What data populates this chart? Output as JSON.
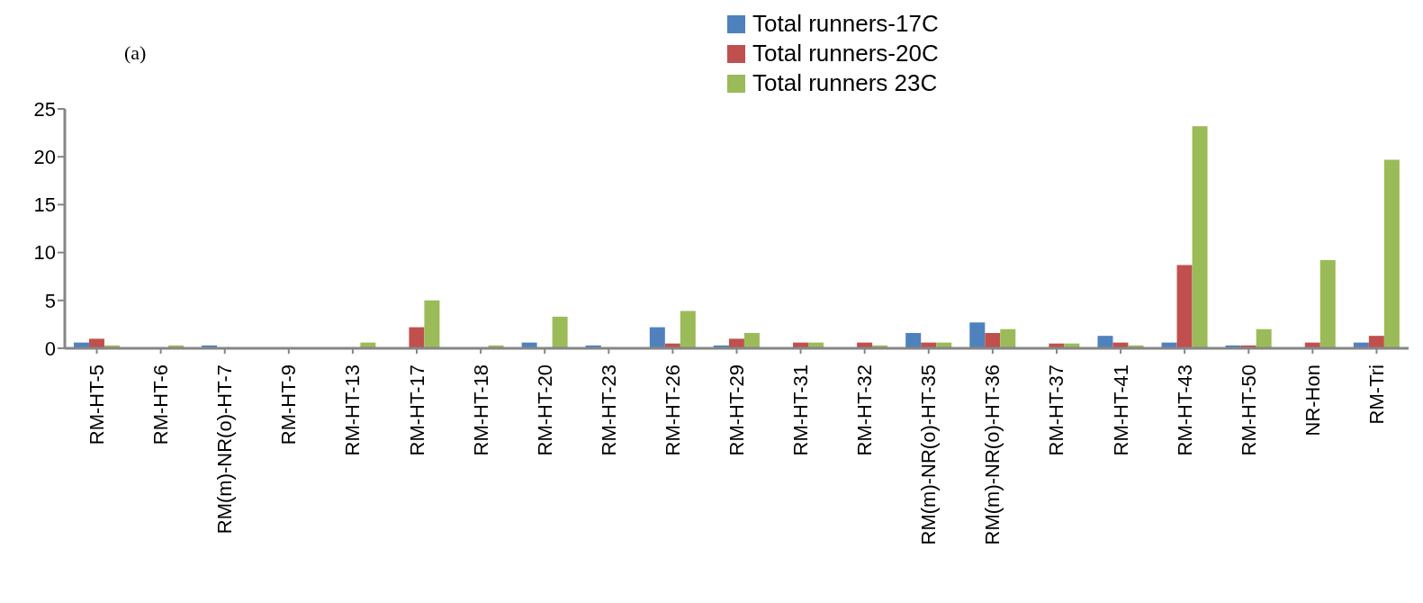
{
  "chart_data": {
    "type": "bar",
    "annotations": [
      "(a)"
    ],
    "categories": [
      "RM-HT-5",
      "RM-HT-6",
      "RM(m)-NR(o)-HT-7",
      "RM-HT-9",
      "RM-HT-13",
      "RM-HT-17",
      "RM-HT-18",
      "RM-HT-20",
      "RM-HT-23",
      "RM-HT-26",
      "RM-HT-29",
      "RM-HT-31",
      "RM-HT-32",
      "RM(m)-NR(o)-HT-35",
      "RM(m)-NR(o)-HT-36",
      "RM-HT-37",
      "RM-HT-41",
      "RM-HT-43",
      "RM-HT-50",
      "NR-Hon",
      "RM-Tri"
    ],
    "series": [
      {
        "name": "Total runners-17C",
        "color": "#4f81bd",
        "values": [
          0.6,
          0,
          0.3,
          0,
          0,
          0,
          0,
          0.6,
          0.3,
          2.2,
          0.3,
          0,
          0,
          1.6,
          2.7,
          0,
          1.3,
          0.6,
          0.3,
          0,
          0.6
        ]
      },
      {
        "name": "Total runners-20C",
        "color": "#c0504d",
        "values": [
          1.0,
          0,
          0,
          0,
          0,
          2.2,
          0,
          0,
          0,
          0.5,
          1.0,
          0.6,
          0.6,
          0.6,
          1.6,
          0.5,
          0.6,
          8.7,
          0.3,
          0.6,
          1.3
        ]
      },
      {
        "name": "Total runners 23C",
        "color": "#9bbb59",
        "values": [
          0.3,
          0.3,
          0,
          0,
          0.6,
          5.0,
          0.3,
          3.3,
          0,
          3.9,
          1.6,
          0.6,
          0.3,
          0.6,
          2.0,
          0.5,
          0.3,
          23.2,
          2.0,
          9.2,
          19.7
        ]
      }
    ],
    "ylim": [
      0,
      25
    ],
    "yticks": [
      0,
      5,
      10,
      15,
      20,
      25
    ],
    "legend": "top"
  }
}
